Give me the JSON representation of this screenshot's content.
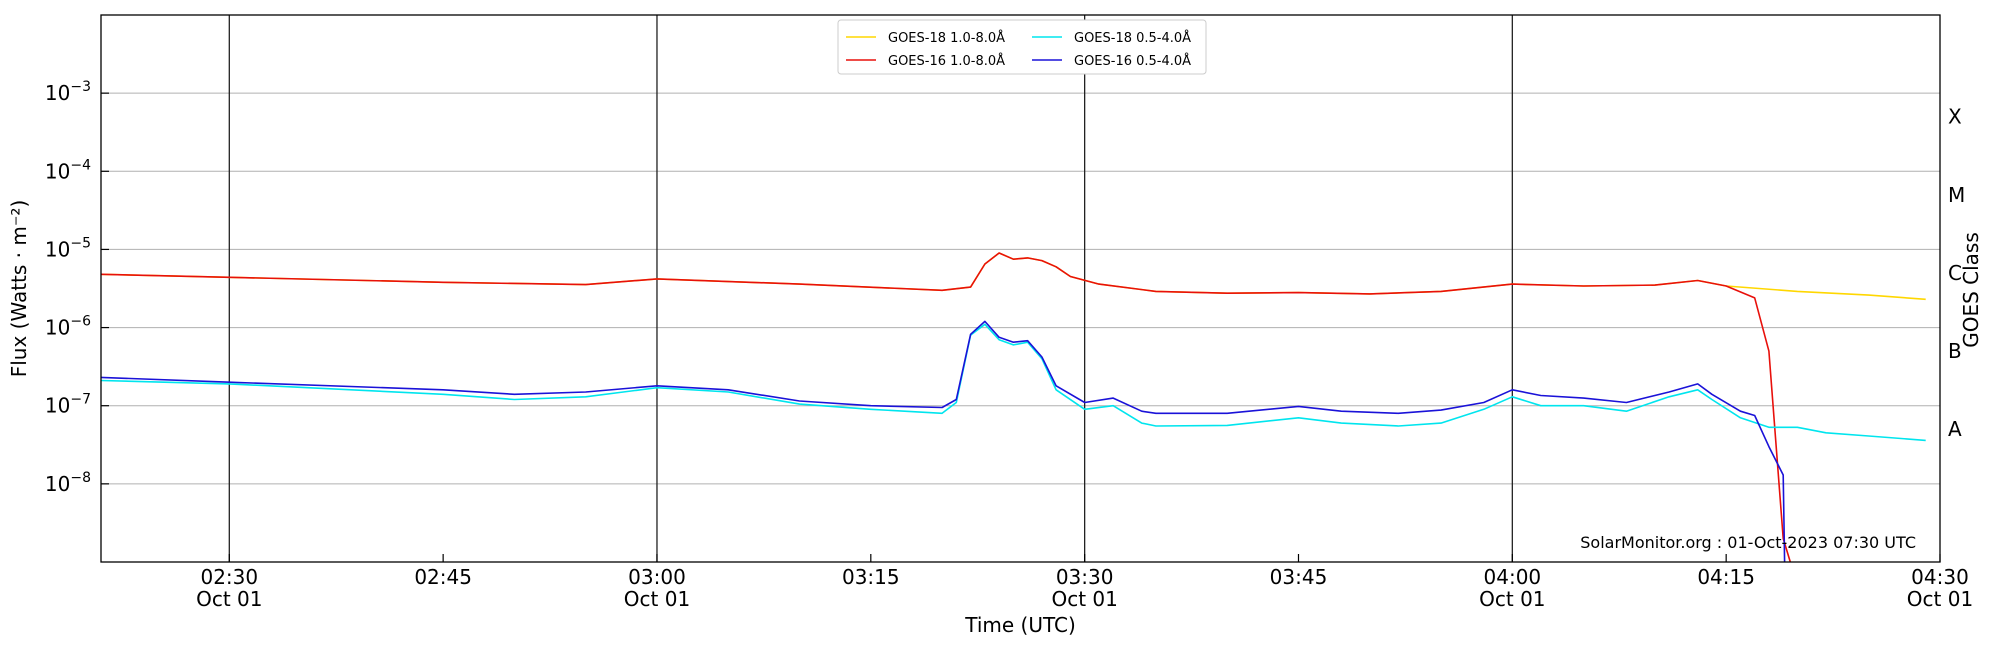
{
  "chart_data": {
    "type": "line",
    "title": "",
    "xlabel": "Time (UTC)",
    "ylabel": "Flux (Watts · m⁻²)",
    "ylabel_right": "GOES Class",
    "y_scale": "log",
    "ylim": [
      1e-09,
      0.01
    ],
    "xlim": [
      "02:21",
      "04:30"
    ],
    "grid": "horizontal",
    "x_ticks": [
      {
        "t": "02:30",
        "time": "02:30",
        "date": "Oct 01"
      },
      {
        "t": "02:45",
        "time": "02:45",
        "date": ""
      },
      {
        "t": "03:00",
        "time": "03:00",
        "date": "Oct 01"
      },
      {
        "t": "03:15",
        "time": "03:15",
        "date": ""
      },
      {
        "t": "03:30",
        "time": "03:30",
        "date": "Oct 01"
      },
      {
        "t": "03:45",
        "time": "03:45",
        "date": ""
      },
      {
        "t": "04:00",
        "time": "04:00",
        "date": "Oct 01"
      },
      {
        "t": "04:15",
        "time": "04:15",
        "date": ""
      },
      {
        "t": "04:30",
        "time": "04:30",
        "date": "Oct 01"
      }
    ],
    "y_ticks": [
      {
        "v": 1e-08,
        "base": "10",
        "exp": "−8"
      },
      {
        "v": 1e-07,
        "base": "10",
        "exp": "−7"
      },
      {
        "v": 1e-06,
        "base": "10",
        "exp": "−6"
      },
      {
        "v": 1e-05,
        "base": "10",
        "exp": "−5"
      },
      {
        "v": 0.0001,
        "base": "10",
        "exp": "−4"
      },
      {
        "v": 0.001,
        "base": "10",
        "exp": "−3"
      }
    ],
    "class_labels": [
      {
        "v": 5e-08,
        "label": "A"
      },
      {
        "v": 5e-07,
        "label": "B"
      },
      {
        "v": 5e-06,
        "label": "C"
      },
      {
        "v": 5e-05,
        "label": "M"
      },
      {
        "v": 0.0005,
        "label": "X"
      }
    ],
    "vertical_lines": [
      "02:30",
      "03:00",
      "03:30",
      "04:00"
    ],
    "credit": "SolarMonitor.org : 01-Oct-2023 07:30 UTC",
    "legend_position": "upper center",
    "series": [
      {
        "name": "GOES-18 1.0-8.0Å",
        "color": "#ffd700",
        "points": [
          [
            "02:21",
            4.8e-06
          ],
          [
            "02:30",
            4.4e-06
          ],
          [
            "02:45",
            3.8e-06
          ],
          [
            "02:55",
            3.55e-06
          ],
          [
            "03:00",
            4.2e-06
          ],
          [
            "03:10",
            3.6e-06
          ],
          [
            "03:20",
            3e-06
          ],
          [
            "03:22",
            3.3e-06
          ],
          [
            "03:23",
            6.5e-06
          ],
          [
            "03:24",
            9e-06
          ],
          [
            "03:25",
            7.5e-06
          ],
          [
            "03:26",
            7.8e-06
          ],
          [
            "03:27",
            7.2e-06
          ],
          [
            "03:28",
            6e-06
          ],
          [
            "03:29",
            4.5e-06
          ],
          [
            "03:31",
            3.6e-06
          ],
          [
            "03:35",
            2.9e-06
          ],
          [
            "03:40",
            2.75e-06
          ],
          [
            "03:45",
            2.8e-06
          ],
          [
            "03:50",
            2.7e-06
          ],
          [
            "03:55",
            2.9e-06
          ],
          [
            "04:00",
            3.6e-06
          ],
          [
            "04:05",
            3.4e-06
          ],
          [
            "04:10",
            3.5e-06
          ],
          [
            "04:13",
            4e-06
          ],
          [
            "04:15",
            3.4e-06
          ],
          [
            "04:20",
            2.9e-06
          ],
          [
            "04:25",
            2.6e-06
          ],
          [
            "04:29",
            2.3e-06
          ]
        ]
      },
      {
        "name": "GOES-16 1.0-8.0Å",
        "color": "#e8100b",
        "points": [
          [
            "02:21",
            4.8e-06
          ],
          [
            "02:30",
            4.4e-06
          ],
          [
            "02:45",
            3.8e-06
          ],
          [
            "02:55",
            3.55e-06
          ],
          [
            "03:00",
            4.2e-06
          ],
          [
            "03:10",
            3.6e-06
          ],
          [
            "03:20",
            3e-06
          ],
          [
            "03:22",
            3.3e-06
          ],
          [
            "03:23",
            6.5e-06
          ],
          [
            "03:24",
            9e-06
          ],
          [
            "03:25",
            7.5e-06
          ],
          [
            "03:26",
            7.8e-06
          ],
          [
            "03:27",
            7.2e-06
          ],
          [
            "03:28",
            6e-06
          ],
          [
            "03:29",
            4.5e-06
          ],
          [
            "03:31",
            3.6e-06
          ],
          [
            "03:35",
            2.9e-06
          ],
          [
            "03:40",
            2.75e-06
          ],
          [
            "03:45",
            2.8e-06
          ],
          [
            "03:50",
            2.7e-06
          ],
          [
            "03:55",
            2.9e-06
          ],
          [
            "04:00",
            3.6e-06
          ],
          [
            "04:05",
            3.4e-06
          ],
          [
            "04:10",
            3.5e-06
          ],
          [
            "04:13",
            4e-06
          ],
          [
            "04:15",
            3.4e-06
          ],
          [
            "04:17",
            2.4e-06
          ],
          [
            "04:18",
            5e-07
          ],
          [
            "04:19",
            2e-09
          ],
          [
            "04:19.5",
            1e-09
          ]
        ]
      },
      {
        "name": "GOES-18 0.5-4.0Å",
        "color": "#00e5ee",
        "points": [
          [
            "02:21",
            2.1e-07
          ],
          [
            "02:30",
            1.9e-07
          ],
          [
            "02:45",
            1.4e-07
          ],
          [
            "02:50",
            1.2e-07
          ],
          [
            "02:55",
            1.3e-07
          ],
          [
            "03:00",
            1.7e-07
          ],
          [
            "03:05",
            1.5e-07
          ],
          [
            "03:10",
            1.05e-07
          ],
          [
            "03:15",
            9e-08
          ],
          [
            "03:20",
            8e-08
          ],
          [
            "03:21",
            1.1e-07
          ],
          [
            "03:22",
            8e-07
          ],
          [
            "03:23",
            1.1e-06
          ],
          [
            "03:24",
            7e-07
          ],
          [
            "03:25",
            6e-07
          ],
          [
            "03:26",
            6.5e-07
          ],
          [
            "03:27",
            4e-07
          ],
          [
            "03:28",
            1.6e-07
          ],
          [
            "03:30",
            9e-08
          ],
          [
            "03:32",
            1e-07
          ],
          [
            "03:34",
            6e-08
          ],
          [
            "03:35",
            5.5e-08
          ],
          [
            "03:40",
            5.6e-08
          ],
          [
            "03:45",
            7e-08
          ],
          [
            "03:48",
            6e-08
          ],
          [
            "03:52",
            5.5e-08
          ],
          [
            "03:55",
            6e-08
          ],
          [
            "03:58",
            9e-08
          ],
          [
            "04:00",
            1.3e-07
          ],
          [
            "04:02",
            1e-07
          ],
          [
            "04:05",
            1e-07
          ],
          [
            "04:08",
            8.5e-08
          ],
          [
            "04:11",
            1.3e-07
          ],
          [
            "04:13",
            1.6e-07
          ],
          [
            "04:14",
            1.2e-07
          ],
          [
            "04:16",
            7e-08
          ],
          [
            "04:18",
            5.3e-08
          ],
          [
            "04:20",
            5.3e-08
          ],
          [
            "04:22",
            4.5e-08
          ],
          [
            "04:25",
            4.1e-08
          ],
          [
            "04:29",
            3.6e-08
          ]
        ]
      },
      {
        "name": "GOES-16 0.5-4.0Å",
        "color": "#1a12d8",
        "points": [
          [
            "02:21",
            2.3e-07
          ],
          [
            "02:30",
            2e-07
          ],
          [
            "02:45",
            1.6e-07
          ],
          [
            "02:50",
            1.4e-07
          ],
          [
            "02:55",
            1.5e-07
          ],
          [
            "03:00",
            1.8e-07
          ],
          [
            "03:05",
            1.6e-07
          ],
          [
            "03:10",
            1.15e-07
          ],
          [
            "03:15",
            1e-07
          ],
          [
            "03:20",
            9.5e-08
          ],
          [
            "03:21",
            1.2e-07
          ],
          [
            "03:22",
            8.2e-07
          ],
          [
            "03:23",
            1.2e-06
          ],
          [
            "03:24",
            7.5e-07
          ],
          [
            "03:25",
            6.5e-07
          ],
          [
            "03:26",
            6.8e-07
          ],
          [
            "03:27",
            4.2e-07
          ],
          [
            "03:28",
            1.8e-07
          ],
          [
            "03:30",
            1.1e-07
          ],
          [
            "03:32",
            1.25e-07
          ],
          [
            "03:34",
            8.5e-08
          ],
          [
            "03:35",
            8e-08
          ],
          [
            "03:40",
            8e-08
          ],
          [
            "03:45",
            9.8e-08
          ],
          [
            "03:48",
            8.5e-08
          ],
          [
            "03:52",
            8e-08
          ],
          [
            "03:55",
            8.8e-08
          ],
          [
            "03:58",
            1.1e-07
          ],
          [
            "04:00",
            1.6e-07
          ],
          [
            "04:02",
            1.35e-07
          ],
          [
            "04:05",
            1.25e-07
          ],
          [
            "04:08",
            1.1e-07
          ],
          [
            "04:11",
            1.5e-07
          ],
          [
            "04:13",
            1.9e-07
          ],
          [
            "04:14",
            1.4e-07
          ],
          [
            "04:16",
            8.5e-08
          ],
          [
            "04:17",
            7.5e-08
          ],
          [
            "04:18",
            3e-08
          ],
          [
            "04:19",
            1.3e-08
          ],
          [
            "04:19.1",
            1e-09
          ]
        ]
      }
    ]
  }
}
